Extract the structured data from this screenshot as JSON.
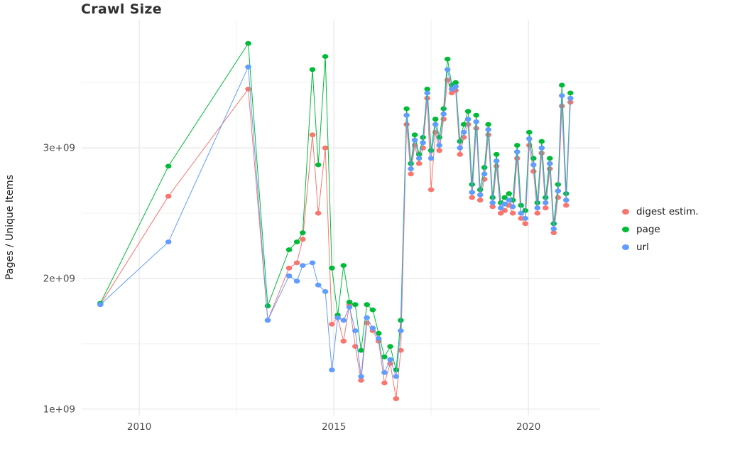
{
  "chart_data": {
    "type": "line",
    "title": "Crawl Size",
    "xlabel": "",
    "ylabel": "Pages / Unique Items",
    "x_unit": "year (decimal)",
    "y_unit": "items, values given in multiples of 1e+09",
    "y_multiplier": 1000000000,
    "grid": true,
    "legend_position": "right",
    "xlim": [
      2008.52,
      2021.84
    ],
    "ylim": [
      0.95,
      3.98
    ],
    "x_ticks": [
      {
        "value": 2010,
        "label": "2010"
      },
      {
        "value": 2015,
        "label": "2015"
      },
      {
        "value": 2020,
        "label": "2020"
      }
    ],
    "y_ticks": [
      {
        "value": 1,
        "label": "1e+09"
      },
      {
        "value": 2,
        "label": "2e+09"
      },
      {
        "value": 3,
        "label": "3e+09"
      }
    ],
    "x": [
      2009.0,
      2010.75,
      2012.8,
      2013.3,
      2013.85,
      2014.05,
      2014.2,
      2014.45,
      2014.6,
      2014.78,
      2014.95,
      2015.1,
      2015.25,
      2015.4,
      2015.55,
      2015.7,
      2015.85,
      2016.0,
      2016.15,
      2016.3,
      2016.45,
      2016.6,
      2016.72,
      2016.87,
      2016.98,
      2017.08,
      2017.19,
      2017.29,
      2017.4,
      2017.5,
      2017.61,
      2017.71,
      2017.82,
      2017.92,
      2018.03,
      2018.13,
      2018.24,
      2018.34,
      2018.45,
      2018.55,
      2018.66,
      2018.76,
      2018.87,
      2018.97,
      2019.08,
      2019.18,
      2019.29,
      2019.39,
      2019.5,
      2019.6,
      2019.71,
      2019.81,
      2019.92,
      2020.02,
      2020.13,
      2020.23,
      2020.34,
      2020.44,
      2020.55,
      2020.65,
      2020.76,
      2020.86,
      2020.97,
      2021.08
    ],
    "series": [
      {
        "name": "digest estim.",
        "color": "#F8766D",
        "values": [
          1.8,
          2.63,
          3.45,
          1.68,
          2.08,
          2.12,
          2.3,
          3.1,
          2.5,
          3.0,
          1.65,
          1.7,
          1.52,
          1.8,
          1.48,
          1.22,
          1.66,
          1.6,
          1.52,
          1.2,
          1.35,
          1.08,
          1.45,
          3.18,
          2.8,
          3.02,
          2.88,
          3.0,
          3.38,
          2.68,
          3.12,
          2.98,
          3.22,
          3.52,
          3.42,
          3.44,
          2.95,
          3.08,
          3.18,
          2.62,
          3.15,
          2.6,
          2.76,
          3.1,
          2.55,
          2.86,
          2.5,
          2.52,
          2.56,
          2.5,
          2.92,
          2.46,
          2.42,
          3.02,
          2.82,
          2.5,
          2.96,
          2.54,
          2.84,
          2.35,
          2.62,
          3.32,
          2.56,
          3.35
        ]
      },
      {
        "name": "page",
        "color": "#00BA38",
        "values": [
          1.81,
          2.86,
          3.8,
          1.79,
          2.22,
          2.28,
          2.35,
          3.6,
          2.87,
          3.7,
          2.08,
          1.72,
          2.1,
          1.82,
          1.8,
          1.45,
          1.8,
          1.76,
          1.58,
          1.4,
          1.48,
          1.3,
          1.68,
          3.3,
          2.88,
          3.1,
          2.95,
          3.08,
          3.45,
          2.98,
          3.22,
          3.08,
          3.3,
          3.68,
          3.48,
          3.5,
          3.05,
          3.18,
          3.28,
          2.72,
          3.25,
          2.68,
          2.85,
          3.18,
          2.62,
          2.95,
          2.58,
          2.62,
          2.65,
          2.6,
          3.02,
          2.56,
          2.52,
          3.12,
          2.92,
          2.58,
          3.05,
          2.62,
          2.92,
          2.42,
          2.72,
          3.48,
          2.65,
          3.42
        ]
      },
      {
        "name": "url",
        "color": "#619CFF",
        "values": [
          1.8,
          2.28,
          3.62,
          1.68,
          2.02,
          1.98,
          2.1,
          2.12,
          1.95,
          1.9,
          1.3,
          1.7,
          1.68,
          1.78,
          1.6,
          1.25,
          1.7,
          1.62,
          1.54,
          1.28,
          1.38,
          1.25,
          1.6,
          3.25,
          2.84,
          3.06,
          2.92,
          3.04,
          3.42,
          2.92,
          3.18,
          3.02,
          3.26,
          3.6,
          3.45,
          3.47,
          3.0,
          3.12,
          3.22,
          2.66,
          3.2,
          2.64,
          2.8,
          3.14,
          2.58,
          2.9,
          2.54,
          2.57,
          2.6,
          2.55,
          2.97,
          2.5,
          2.46,
          3.07,
          2.87,
          2.54,
          3.0,
          2.58,
          2.88,
          2.38,
          2.67,
          3.4,
          2.6,
          3.38
        ]
      }
    ]
  }
}
